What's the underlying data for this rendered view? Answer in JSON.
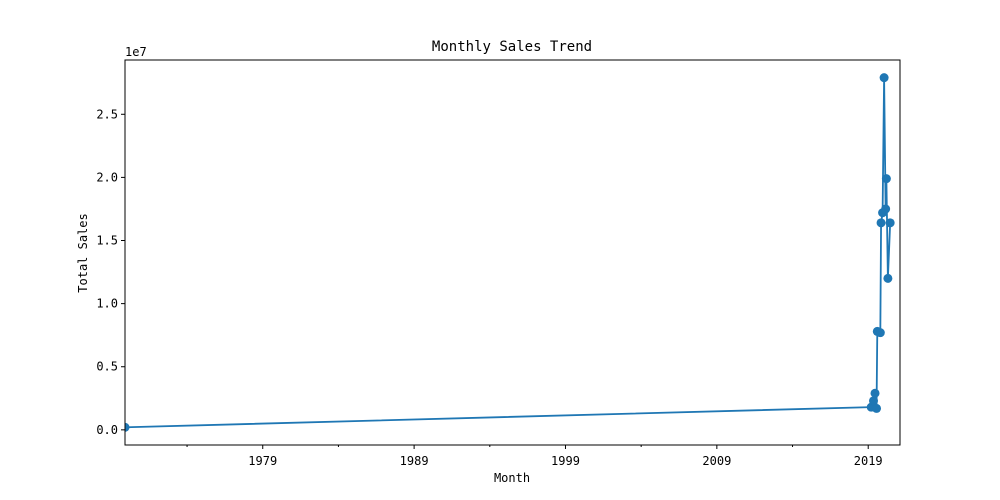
{
  "chart_data": {
    "type": "line",
    "title": "Monthly Sales Trend",
    "xlabel": "Month",
    "ylabel": "Total Sales",
    "y_offset_label": "1e7",
    "x_ticks": [
      "1979",
      "1989",
      "1999",
      "2009",
      "2019"
    ],
    "x_tick_values": [
      1979,
      1989,
      1999,
      2009,
      2019
    ],
    "x_minor_tick_values": [
      1974,
      1984,
      1994,
      2004,
      2014
    ],
    "y_ticks": [
      "0.0",
      "0.5",
      "1.0",
      "1.5",
      "2.0",
      "2.5"
    ],
    "y_tick_values": [
      0.0,
      0.5,
      1.0,
      1.5,
      2.0,
      2.5
    ],
    "xlim": [
      1969.9,
      2021.1
    ],
    "ylim": [
      -0.12,
      2.93
    ],
    "grid": false,
    "series_color": "#1f77b4",
    "points": [
      {
        "x": 1969.9,
        "y": 0.02
      },
      {
        "x": 2019.2,
        "y": 0.18
      },
      {
        "x": 2019.35,
        "y": 0.23
      },
      {
        "x": 2019.45,
        "y": 0.29
      },
      {
        "x": 2019.55,
        "y": 0.17
      },
      {
        "x": 2019.6,
        "y": 0.78
      },
      {
        "x": 2019.8,
        "y": 0.77
      },
      {
        "x": 2019.85,
        "y": 1.64
      },
      {
        "x": 2019.95,
        "y": 1.72
      },
      {
        "x": 2020.05,
        "y": 2.79
      },
      {
        "x": 2020.15,
        "y": 1.75
      },
      {
        "x": 2020.2,
        "y": 1.99
      },
      {
        "x": 2020.3,
        "y": 1.2
      },
      {
        "x": 2020.45,
        "y": 1.64
      }
    ]
  }
}
